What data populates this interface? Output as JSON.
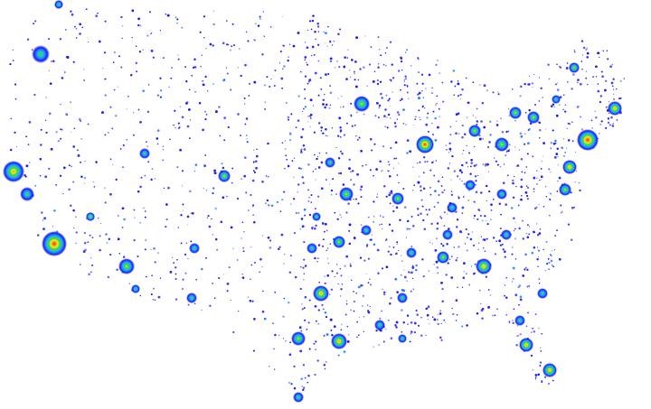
{
  "map": {
    "type": "density-heatmap",
    "region": "continental-united-states",
    "background": "#ffffff",
    "color_scale": [
      "#1a1aff",
      "#1f7fff",
      "#21c8c8",
      "#3fd43f",
      "#f0f020",
      "#ff8c00",
      "#ff1a1a"
    ]
  }
}
